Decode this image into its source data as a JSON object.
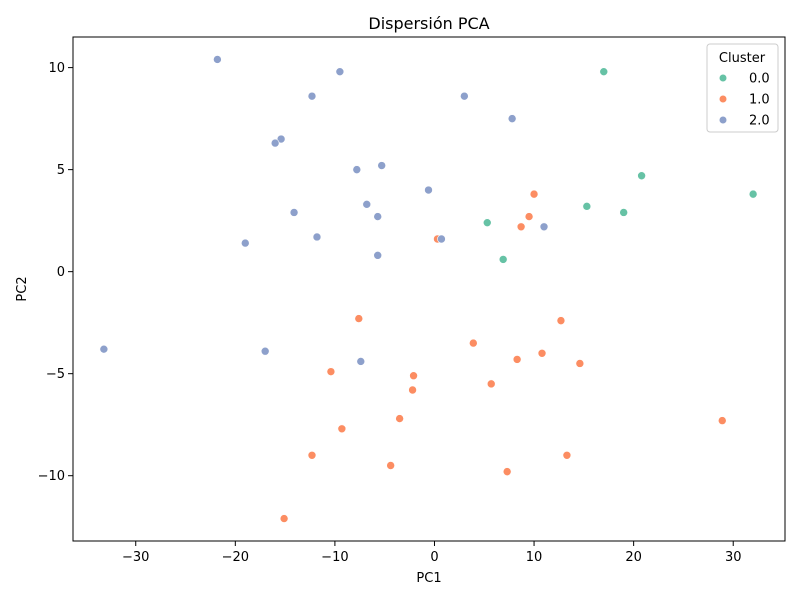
{
  "chart_data": {
    "type": "scatter",
    "title": "Dispersión PCA",
    "xlabel": "PC1",
    "ylabel": "PC2",
    "xlim": [
      -36.3,
      35.2
    ],
    "ylim": [
      -13.2,
      11.5
    ],
    "xticks": [
      -30,
      -20,
      -10,
      0,
      10,
      20,
      30
    ],
    "yticks": [
      -10,
      -5,
      0,
      5,
      10
    ],
    "grid": false,
    "legend": {
      "title": "Cluster",
      "placement": "top-right"
    },
    "series": [
      {
        "name": "0.0",
        "color": "#66c2a5",
        "points": [
          [
            17.0,
            9.8
          ],
          [
            20.8,
            4.7
          ],
          [
            32.0,
            3.8
          ],
          [
            15.3,
            3.2
          ],
          [
            19.0,
            2.9
          ],
          [
            5.3,
            2.4
          ],
          [
            6.9,
            0.6
          ]
        ]
      },
      {
        "name": "1.0",
        "color": "#fc8d62",
        "points": [
          [
            10.0,
            3.8
          ],
          [
            9.5,
            2.7
          ],
          [
            8.7,
            2.2
          ],
          [
            0.3,
            1.6
          ],
          [
            -7.6,
            -2.3
          ],
          [
            12.7,
            -2.4
          ],
          [
            3.9,
            -3.5
          ],
          [
            10.8,
            -4.0
          ],
          [
            8.3,
            -4.3
          ],
          [
            14.6,
            -4.5
          ],
          [
            -10.4,
            -4.9
          ],
          [
            -2.1,
            -5.1
          ],
          [
            5.7,
            -5.5
          ],
          [
            -2.2,
            -5.8
          ],
          [
            -3.5,
            -7.2
          ],
          [
            28.9,
            -7.3
          ],
          [
            -9.3,
            -7.7
          ],
          [
            -12.3,
            -9.0
          ],
          [
            13.3,
            -9.0
          ],
          [
            -4.4,
            -9.5
          ],
          [
            7.3,
            -9.8
          ],
          [
            -15.1,
            -12.1
          ]
        ]
      },
      {
        "name": "2.0",
        "color": "#8da0cb",
        "points": [
          [
            -21.8,
            10.4
          ],
          [
            -9.5,
            9.8
          ],
          [
            -12.3,
            8.6
          ],
          [
            3.0,
            8.6
          ],
          [
            7.8,
            7.5
          ],
          [
            -15.4,
            6.5
          ],
          [
            -16.0,
            6.3
          ],
          [
            -5.3,
            5.2
          ],
          [
            -7.8,
            5.0
          ],
          [
            -0.6,
            4.0
          ],
          [
            -6.8,
            3.3
          ],
          [
            -14.1,
            2.9
          ],
          [
            -5.7,
            2.7
          ],
          [
            11.0,
            2.2
          ],
          [
            -11.8,
            1.7
          ],
          [
            0.7,
            1.6
          ],
          [
            -19.0,
            1.4
          ],
          [
            -5.7,
            0.8
          ],
          [
            -33.2,
            -3.8
          ],
          [
            -17.0,
            -3.9
          ],
          [
            -7.4,
            -4.4
          ]
        ]
      }
    ]
  }
}
